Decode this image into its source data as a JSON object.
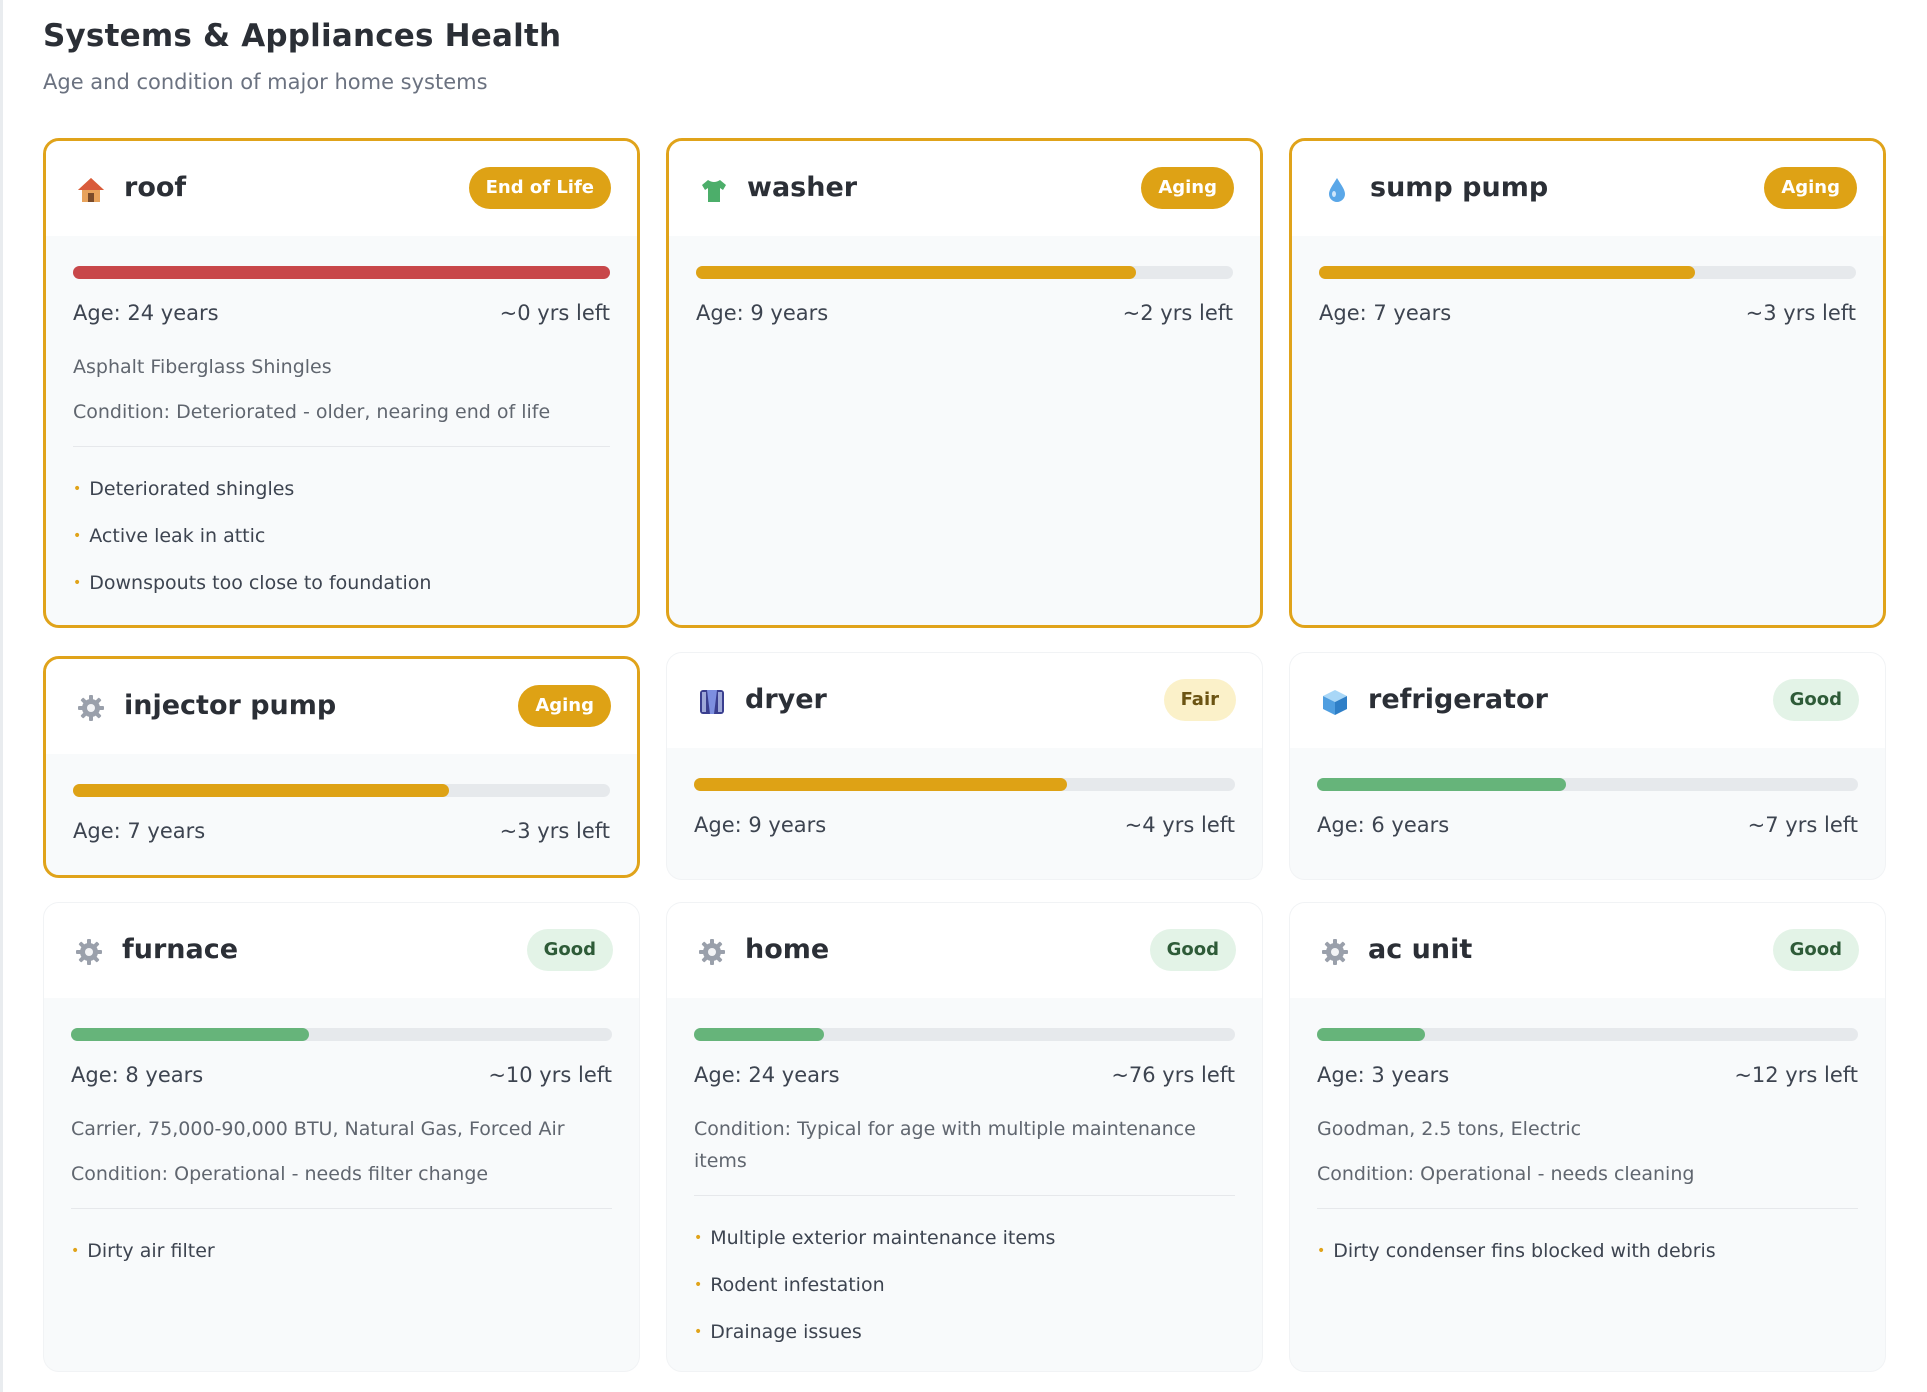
{
  "header": {
    "title": "Systems & Appliances Health",
    "subtitle": "Age and condition of major home systems"
  },
  "colors": {
    "red": "#c8474a",
    "amber": "#dea215",
    "green": "#66b47a",
    "track": "#e6e9ec"
  },
  "cards": [
    {
      "name": "roof",
      "icon": "house-icon",
      "status": "End of Life",
      "age": "Age: 24 years",
      "left": "~0 yrs left",
      "remaining_fraction": 1.0,
      "details": [
        "Asphalt Fiberglass Shingles",
        "Condition: Deteriorated - older, nearing end of life"
      ],
      "issues": [
        "Deteriorated shingles",
        "Active leak in attic",
        "Downspouts too close to foundation"
      ]
    },
    {
      "name": "washer",
      "icon": "shirt-icon",
      "status": "Aging",
      "age": "Age: 9 years",
      "left": "~2 yrs left",
      "remaining_fraction": 0.82,
      "details": [],
      "issues": []
    },
    {
      "name": "sump pump",
      "icon": "droplet-icon",
      "status": "Aging",
      "age": "Age: 7 years",
      "left": "~3 yrs left",
      "remaining_fraction": 0.7,
      "details": [],
      "issues": []
    },
    {
      "name": "injector pump",
      "icon": "gear-icon",
      "status": "Aging",
      "age": "Age: 7 years",
      "left": "~3 yrs left",
      "remaining_fraction": 0.7,
      "details": [],
      "issues": []
    },
    {
      "name": "dryer",
      "icon": "dryer-icon",
      "status": "Fair",
      "age": "Age: 9 years",
      "left": "~4 yrs left",
      "remaining_fraction": 0.69,
      "details": [],
      "issues": []
    },
    {
      "name": "refrigerator",
      "icon": "cube-icon",
      "status": "Good",
      "age": "Age: 6 years",
      "left": "~7 yrs left",
      "remaining_fraction": 0.46,
      "details": [],
      "issues": []
    },
    {
      "name": "furnace",
      "icon": "gear-icon",
      "status": "Good",
      "age": "Age: 8 years",
      "left": "~10 yrs left",
      "remaining_fraction": 0.44,
      "details": [
        "Carrier, 75,000-90,000 BTU, Natural Gas, Forced Air",
        "Condition: Operational - needs filter change"
      ],
      "issues": [
        "Dirty air filter"
      ]
    },
    {
      "name": "home",
      "icon": "gear-icon",
      "status": "Good",
      "age": "Age: 24 years",
      "left": "~76 yrs left",
      "remaining_fraction": 0.24,
      "details": [
        "Condition: Typical for age with multiple maintenance items"
      ],
      "issues": [
        "Multiple exterior maintenance items",
        "Rodent infestation",
        "Drainage issues"
      ]
    },
    {
      "name": "ac unit",
      "icon": "gear-icon",
      "status": "Good",
      "age": "Age: 3 years",
      "left": "~12 yrs left",
      "remaining_fraction": 0.2,
      "details": [
        "Goodman, 2.5 tons, Electric",
        "Condition: Operational - needs cleaning"
      ],
      "issues": [
        "Dirty condenser fins blocked with debris"
      ]
    }
  ]
}
